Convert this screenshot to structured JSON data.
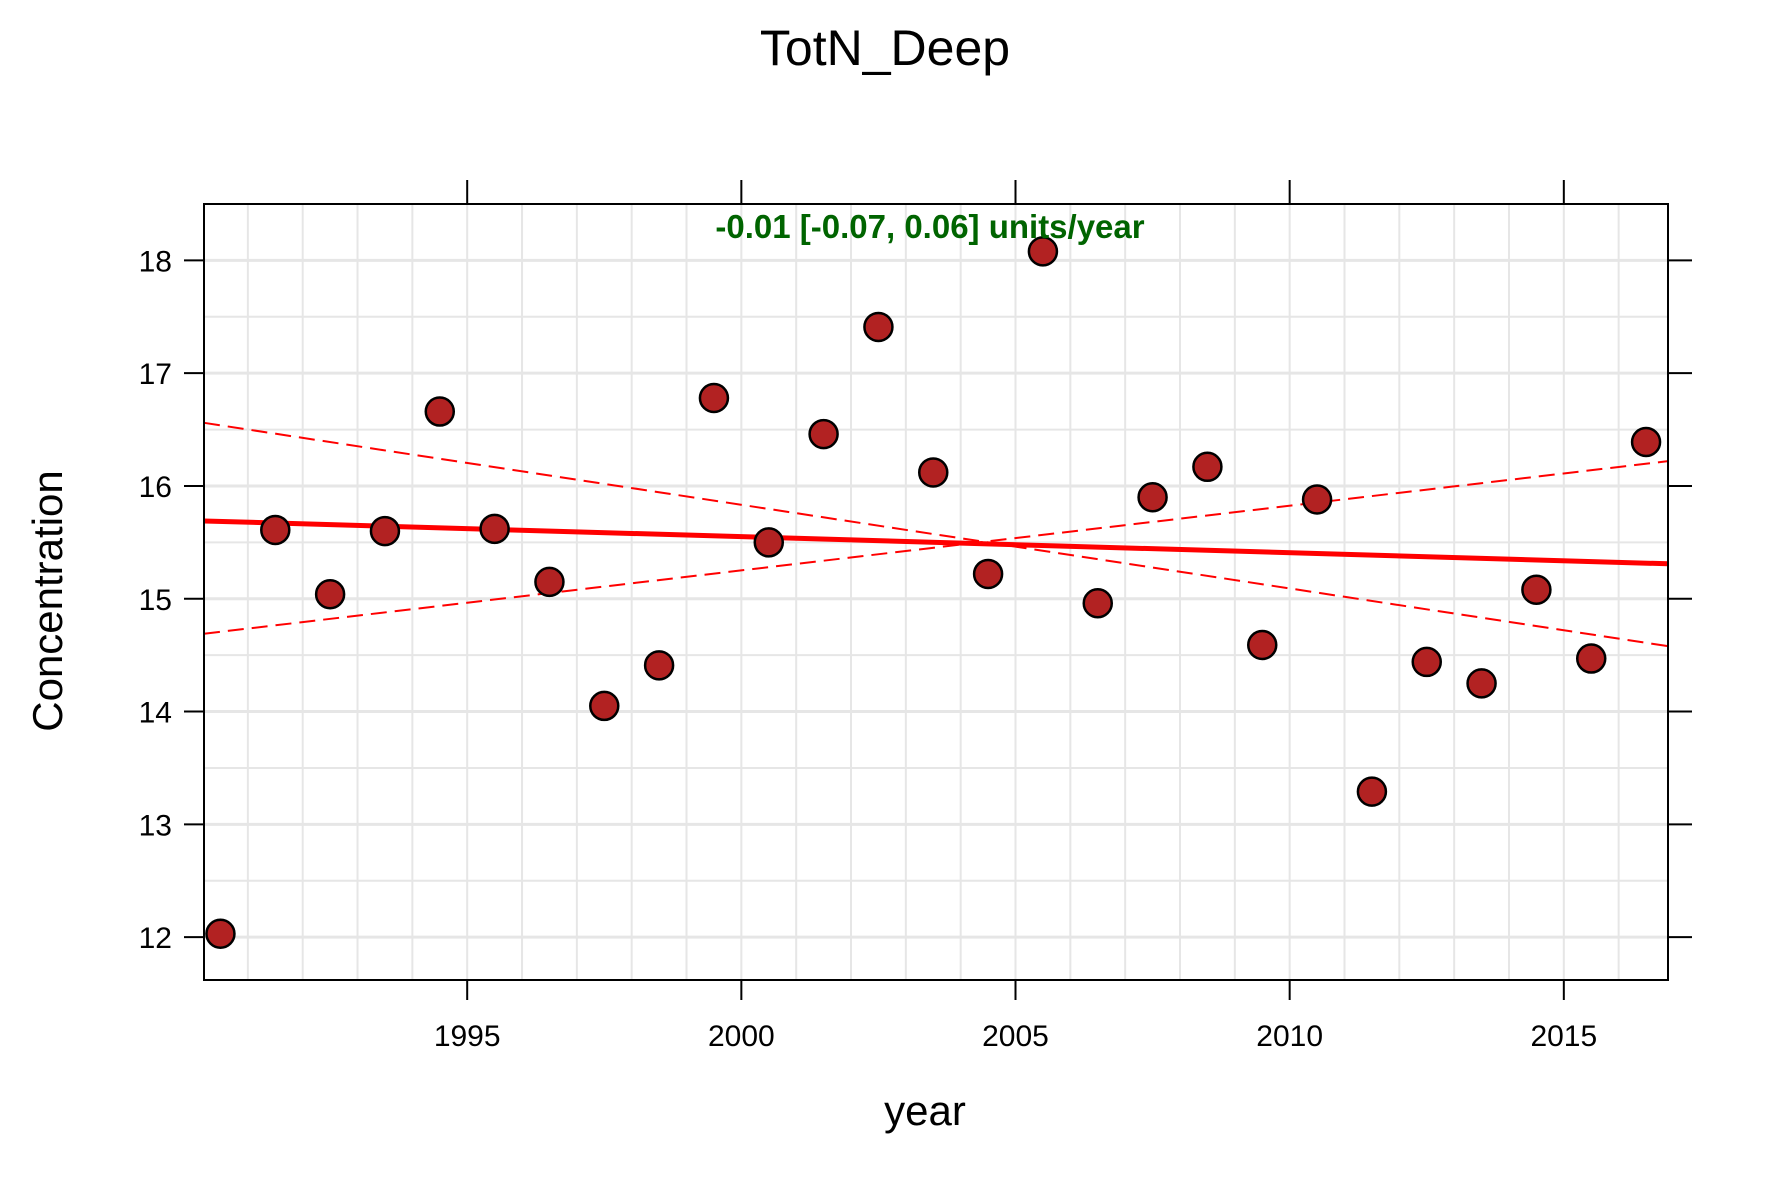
{
  "chart_data": {
    "type": "scatter",
    "title": "TotN_Deep",
    "xlabel": "year",
    "ylabel": "Concentration",
    "xlim": [
      1990.2,
      2016.9
    ],
    "ylim": [
      11.62,
      18.5
    ],
    "grid": true,
    "x_ticks": [
      1995,
      2000,
      2005,
      2010,
      2015
    ],
    "x_tick_labels": [
      "1995",
      "2000",
      "2005",
      "2010",
      "2015"
    ],
    "y_ticks": [
      12,
      13,
      14,
      15,
      16,
      17,
      18
    ],
    "y_tick_labels": [
      "12",
      "13",
      "14",
      "15",
      "16",
      "17",
      "18"
    ],
    "annotation": "-0.01 [-0.07, 0.06] units/year",
    "colors": {
      "points": "#b22222",
      "point_outline": "#000000",
      "trend": "#ff0000",
      "annotation": "#006400",
      "grid": "#e6e6e6"
    },
    "series": [
      {
        "type": "scatter",
        "x": [
          1990.5,
          1991.5,
          1992.5,
          1993.5,
          1994.5,
          1995.5,
          1996.5,
          1997.5,
          1998.5,
          1999.5,
          2000.5,
          2001.5,
          2002.5,
          2003.5,
          2004.5,
          2005.5,
          2006.5,
          2007.5,
          2008.5,
          2009.5,
          2010.5,
          2011.5,
          2012.5,
          2013.5,
          2014.5,
          2015.5,
          2016.5
        ],
        "y": [
          12.03,
          15.61,
          15.04,
          15.6,
          16.66,
          15.62,
          15.15,
          14.05,
          14.41,
          16.78,
          15.5,
          16.46,
          17.41,
          16.12,
          15.22,
          18.08,
          14.96,
          15.9,
          16.17,
          14.59,
          15.88,
          13.29,
          14.44,
          14.25,
          15.08,
          14.47,
          16.39
        ]
      },
      {
        "type": "line",
        "style": "solid",
        "x": [
          1990.2,
          2016.9
        ],
        "y": [
          15.69,
          15.31
        ]
      },
      {
        "type": "line",
        "style": "dashed",
        "x": [
          1990.2,
          2016.9
        ],
        "y": [
          16.56,
          14.58
        ]
      },
      {
        "type": "line",
        "style": "dashed",
        "x": [
          1990.2,
          2016.9
        ],
        "y": [
          14.69,
          16.22
        ]
      }
    ]
  }
}
